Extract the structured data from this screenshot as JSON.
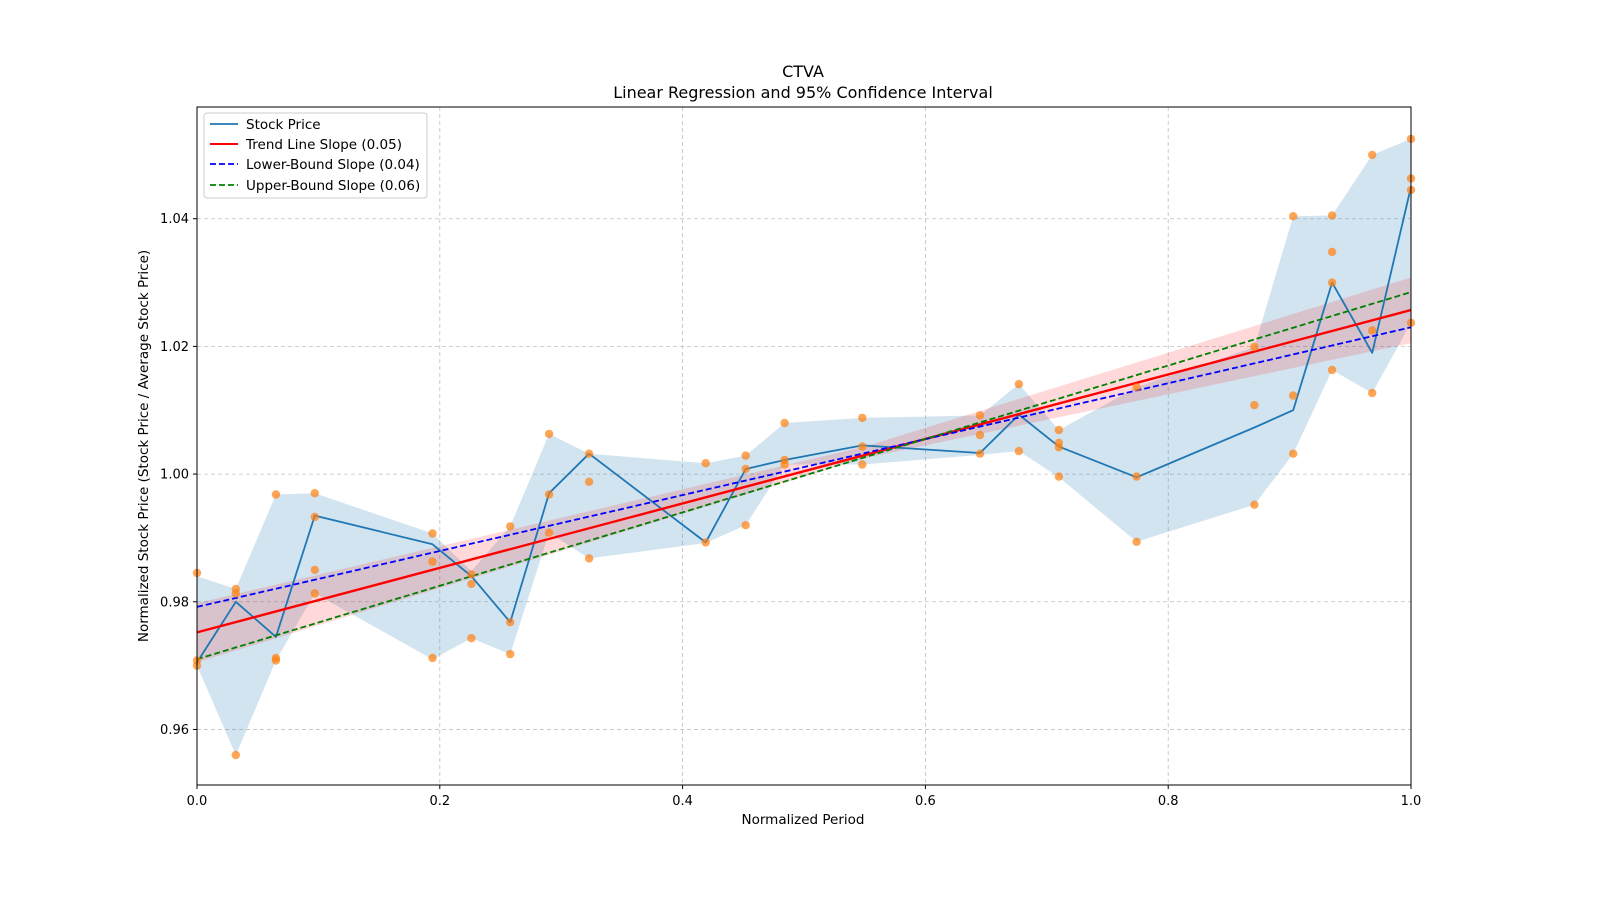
{
  "chart_data": {
    "type": "line",
    "title": "CTVA",
    "subtitle": "Linear Regression and 95% Confidence Interval",
    "xlabel": "Normalized Period",
    "ylabel": "Normalized Stock Price (Stock Price / Average Stock Price)",
    "xlim": [
      0.0,
      1.0
    ],
    "ylim": [
      0.9513,
      1.0575
    ],
    "x_ticks": [
      0.0,
      0.2,
      0.4,
      0.6,
      0.8,
      1.0
    ],
    "x_tick_labels": [
      "0.0",
      "0.2",
      "0.4",
      "0.6",
      "0.8",
      "1.0"
    ],
    "y_ticks": [
      0.96,
      0.98,
      1.0,
      1.02,
      1.04
    ],
    "y_tick_labels": [
      "0.96",
      "0.98",
      "1.00",
      "1.02",
      "1.04"
    ],
    "grid": true,
    "legend_position": "top-left",
    "legend": [
      {
        "label": "Stock Price",
        "color": "#1f77b4",
        "style": "solid"
      },
      {
        "label": "Trend Line Slope (0.05)",
        "color": "#ff0000",
        "style": "solid"
      },
      {
        "label": "Lower-Bound Slope (0.04)",
        "color": "#0000ff",
        "style": "dashed"
      },
      {
        "label": "Upper-Bound Slope (0.06)",
        "color": "#008000",
        "style": "dashed"
      }
    ],
    "colors": {
      "stock_line": "#1f77b4",
      "stock_band": "#1f77b4",
      "scatter": "#ff7f0e",
      "trend": "#ff0000",
      "trend_band": "#ff0000",
      "lower": "#0000ff",
      "upper": "#008000"
    },
    "stock_price": {
      "x": [
        0.0,
        0.032,
        0.065,
        0.097,
        0.194,
        0.226,
        0.258,
        0.29,
        0.323,
        0.419,
        0.452,
        0.484,
        0.548,
        0.645,
        0.677,
        0.71,
        0.774,
        0.871,
        0.903,
        0.935,
        0.968,
        1.0
      ],
      "y": [
        0.9705,
        0.98,
        0.9745,
        0.9935,
        0.989,
        0.984,
        0.9768,
        0.997,
        1.0032,
        0.9893,
        1.0008,
        1.0022,
        1.0045,
        1.0033,
        1.0093,
        1.0043,
        0.9995,
        1.0073,
        1.01,
        1.03,
        1.019,
        1.045
      ]
    },
    "stock_band": {
      "x": [
        0.0,
        0.032,
        0.065,
        0.097,
        0.194,
        0.226,
        0.258,
        0.29,
        0.323,
        0.419,
        0.452,
        0.484,
        0.548,
        0.645,
        0.677,
        0.71,
        0.774,
        0.871,
        0.903,
        0.935,
        0.968,
        1.0
      ],
      "upper": [
        0.984,
        0.982,
        0.9968,
        0.997,
        0.9907,
        0.9848,
        0.9918,
        1.0063,
        1.0032,
        1.0017,
        1.0029,
        1.008,
        1.0088,
        1.0092,
        1.0141,
        1.0069,
        1.0136,
        1.0199,
        1.0404,
        1.0405,
        1.05,
        1.0525
      ],
      "lower": [
        0.97,
        0.956,
        0.9708,
        0.9813,
        0.971,
        0.9743,
        0.9718,
        0.9908,
        0.9868,
        0.9892,
        0.992,
        1.0015,
        1.0015,
        1.003,
        1.0036,
        0.9995,
        0.9894,
        0.9952,
        1.0032,
        1.0163,
        1.0127,
        1.0237
      ]
    },
    "scatter_points": {
      "x": [
        0.0,
        0.0,
        0.0,
        0.032,
        0.032,
        0.032,
        0.065,
        0.065,
        0.065,
        0.097,
        0.097,
        0.097,
        0.097,
        0.194,
        0.194,
        0.194,
        0.226,
        0.226,
        0.226,
        0.258,
        0.258,
        0.258,
        0.29,
        0.29,
        0.29,
        0.323,
        0.323,
        0.323,
        0.419,
        0.419,
        0.452,
        0.452,
        0.452,
        0.484,
        0.484,
        0.484,
        0.548,
        0.548,
        0.548,
        0.645,
        0.645,
        0.645,
        0.677,
        0.677,
        0.71,
        0.71,
        0.71,
        0.71,
        0.774,
        0.774,
        0.774,
        0.871,
        0.871,
        0.871,
        0.903,
        0.903,
        0.903,
        0.935,
        0.935,
        0.935,
        0.935,
        0.968,
        0.968,
        0.968,
        1.0,
        1.0,
        1.0,
        1.0
      ],
      "y": [
        0.9845,
        0.9708,
        0.97,
        0.982,
        0.9813,
        0.956,
        0.9968,
        0.9712,
        0.9708,
        0.997,
        0.9933,
        0.985,
        0.9813,
        0.9907,
        0.9863,
        0.9712,
        0.9843,
        0.9828,
        0.9743,
        0.9918,
        0.9768,
        0.9718,
        1.0063,
        0.9968,
        0.9908,
        1.0032,
        0.9988,
        0.9868,
        1.0017,
        0.9893,
        1.0029,
        1.0008,
        0.992,
        1.008,
        1.0022,
        1.0015,
        1.0088,
        1.0043,
        1.0015,
        1.0092,
        1.0061,
        1.0032,
        1.0141,
        1.0036,
        1.0069,
        1.0049,
        1.0042,
        0.9996,
        1.0136,
        0.9996,
        0.9894,
        1.0199,
        1.0108,
        0.9952,
        1.0404,
        1.0123,
        1.0032,
        1.0405,
        1.0348,
        1.03,
        1.0163,
        1.05,
        1.0225,
        1.0127,
        1.0525,
        1.0463,
        1.0445,
        1.0237
      ]
    },
    "trend_line": {
      "slope": 0.05,
      "x": [
        0.0,
        1.0
      ],
      "y": [
        0.9752,
        1.0257
      ]
    },
    "trend_band": {
      "x": [
        0.0,
        0.55,
        1.0
      ],
      "upper": [
        0.9798,
        1.0043,
        1.0308
      ],
      "lower": [
        0.9705,
        1.0025,
        1.0205
      ]
    },
    "lower_bound_line": {
      "slope": 0.04,
      "x": [
        0.0,
        1.0
      ],
      "y": [
        0.9792,
        1.023
      ]
    },
    "upper_bound_line": {
      "slope": 0.06,
      "x": [
        0.0,
        1.0
      ],
      "y": [
        0.971,
        1.0285
      ]
    }
  }
}
